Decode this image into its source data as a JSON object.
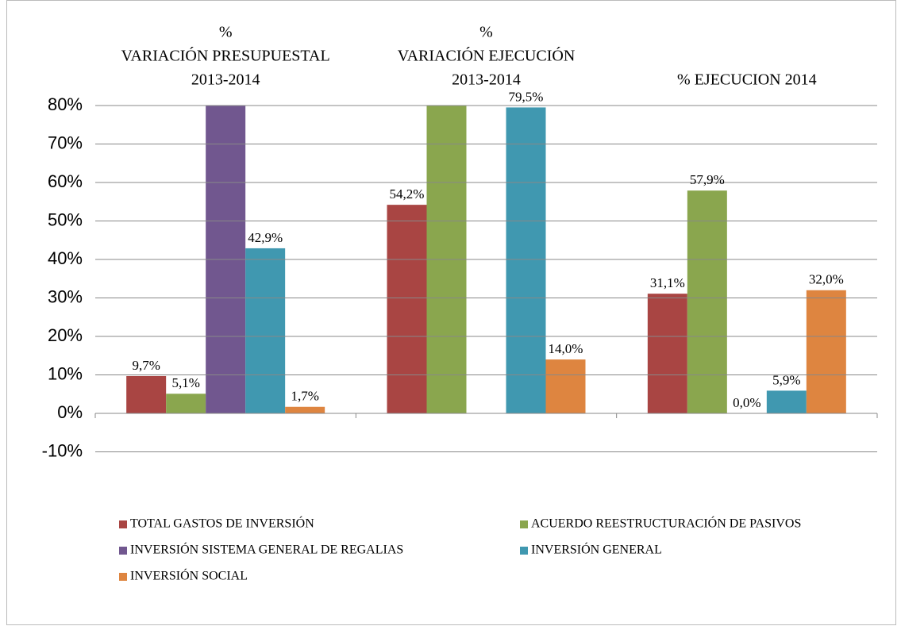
{
  "chart_data": {
    "type": "bar",
    "categories": [
      [
        "%",
        "VARIACIÓN PRESUPUESTAL",
        "2013-2014"
      ],
      [
        "%",
        "VARIACIÓN EJECUCIÓN",
        "2013-2014"
      ],
      [
        "% EJECUCION 2014"
      ]
    ],
    "series": [
      {
        "name": "TOTAL GASTOS  DE INVERSIÓN",
        "color": "#a94543",
        "values": [
          9.7,
          54.2,
          31.1
        ],
        "value_labels": [
          "9,7%",
          "54,2%",
          "31,1%"
        ]
      },
      {
        "name": "ACUERDO REESTRUCTURACIÓN DE PASIVOS",
        "color": "#8aa64e",
        "values": [
          5.1,
          80,
          57.9
        ],
        "value_labels": [
          "5,1%",
          null,
          "57,9%"
        ]
      },
      {
        "name": "INVERSIÓN SISTEMA GENERAL DE REGALIAS",
        "color": "#71578f",
        "values": [
          80,
          null,
          0.0
        ],
        "value_labels": [
          null,
          null,
          "0,0%"
        ]
      },
      {
        "name": "INVERSIÓN GENERAL",
        "color": "#4098b0",
        "values": [
          42.9,
          79.5,
          5.9
        ],
        "value_labels": [
          "42,9%",
          "79,5%",
          "5,9%"
        ]
      },
      {
        "name": "INVERSIÓN SOCIAL",
        "color": "#de8540",
        "values": [
          1.7,
          14.0,
          32.0
        ],
        "value_labels": [
          "1,7%",
          "14,0%",
          "32,0%"
        ]
      }
    ],
    "ylim": [
      -10,
      80
    ],
    "yticks": [
      {
        "value": -10,
        "label": "-10%"
      },
      {
        "value": 0,
        "label": "0%"
      },
      {
        "value": 10,
        "label": "10%"
      },
      {
        "value": 20,
        "label": "20%"
      },
      {
        "value": 30,
        "label": "30%"
      },
      {
        "value": 40,
        "label": "40%"
      },
      {
        "value": 50,
        "label": "50%"
      },
      {
        "value": 60,
        "label": "60%"
      },
      {
        "value": 70,
        "label": "70%"
      },
      {
        "value": 80,
        "label": "80%"
      }
    ],
    "grid": true,
    "legend": "bottom"
  }
}
